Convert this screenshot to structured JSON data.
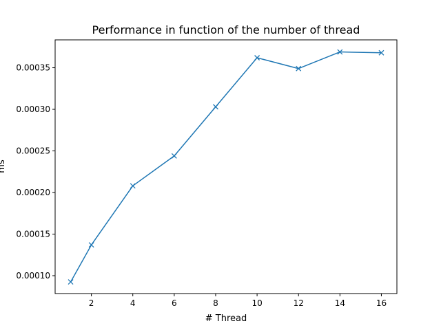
{
  "chart_data": {
    "type": "line",
    "title": "Performance in function of the number of thread",
    "xlabel": "# Thread",
    "ylabel": "ms",
    "xlim": [
      0.25,
      16.75
    ],
    "ylim": [
      7.85e-05,
      0.0003835
    ],
    "xticks": [
      2,
      4,
      6,
      8,
      10,
      12,
      14,
      16
    ],
    "yticks": [
      0.0001,
      0.00015,
      0.0002,
      0.00025,
      0.0003,
      0.00035
    ],
    "ytick_labels": [
      "0.00010",
      "0.00015",
      "0.00020",
      "0.00025",
      "0.00030",
      "0.00035"
    ],
    "grid": false,
    "series": [
      {
        "x": [
          1,
          2,
          4,
          6,
          8,
          10,
          12,
          14,
          16
        ],
        "y": [
          9.25e-05,
          0.000137,
          0.000208,
          0.000244,
          0.000303,
          0.000362,
          0.000349,
          0.000369,
          0.000368
        ],
        "marker": "x",
        "color": "#1f77b4"
      }
    ]
  }
}
